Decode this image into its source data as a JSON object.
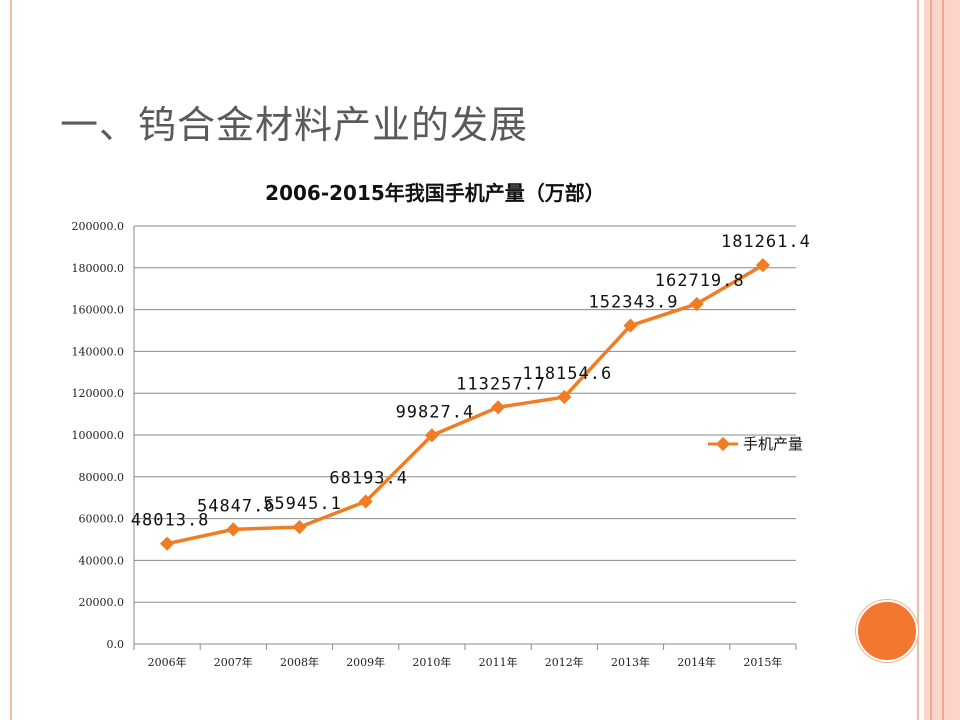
{
  "slide": {
    "title": "一、钨合金材料产业的发展"
  },
  "chart_data": {
    "type": "line",
    "title": "2006-2015年我国手机产量（万部）",
    "categories": [
      "2006年",
      "2007年",
      "2008年",
      "2009年",
      "2010年",
      "2011年",
      "2012年",
      "2013年",
      "2014年",
      "2015年"
    ],
    "series": [
      {
        "name": "手机产量",
        "values": [
          48013.8,
          54847.6,
          55945.1,
          68193.4,
          99827.4,
          113257.7,
          118154.6,
          152343.9,
          162719.8,
          181261.4
        ],
        "labels": [
          "48013.8",
          "54847.6",
          "55945.1",
          "68193.4",
          "99827.4",
          "113257.7",
          "118154.6",
          "152343.9",
          "162719.8",
          "181261.4"
        ],
        "color": "#f07d23"
      }
    ],
    "ylim": [
      0,
      200000
    ],
    "yticks": [
      "0.0",
      "20000.0",
      "40000.0",
      "60000.0",
      "80000.0",
      "100000.0",
      "120000.0",
      "140000.0",
      "160000.0",
      "180000.0",
      "200000.0"
    ],
    "xlabel": "",
    "ylabel": "",
    "grid": true,
    "legend": "right"
  }
}
